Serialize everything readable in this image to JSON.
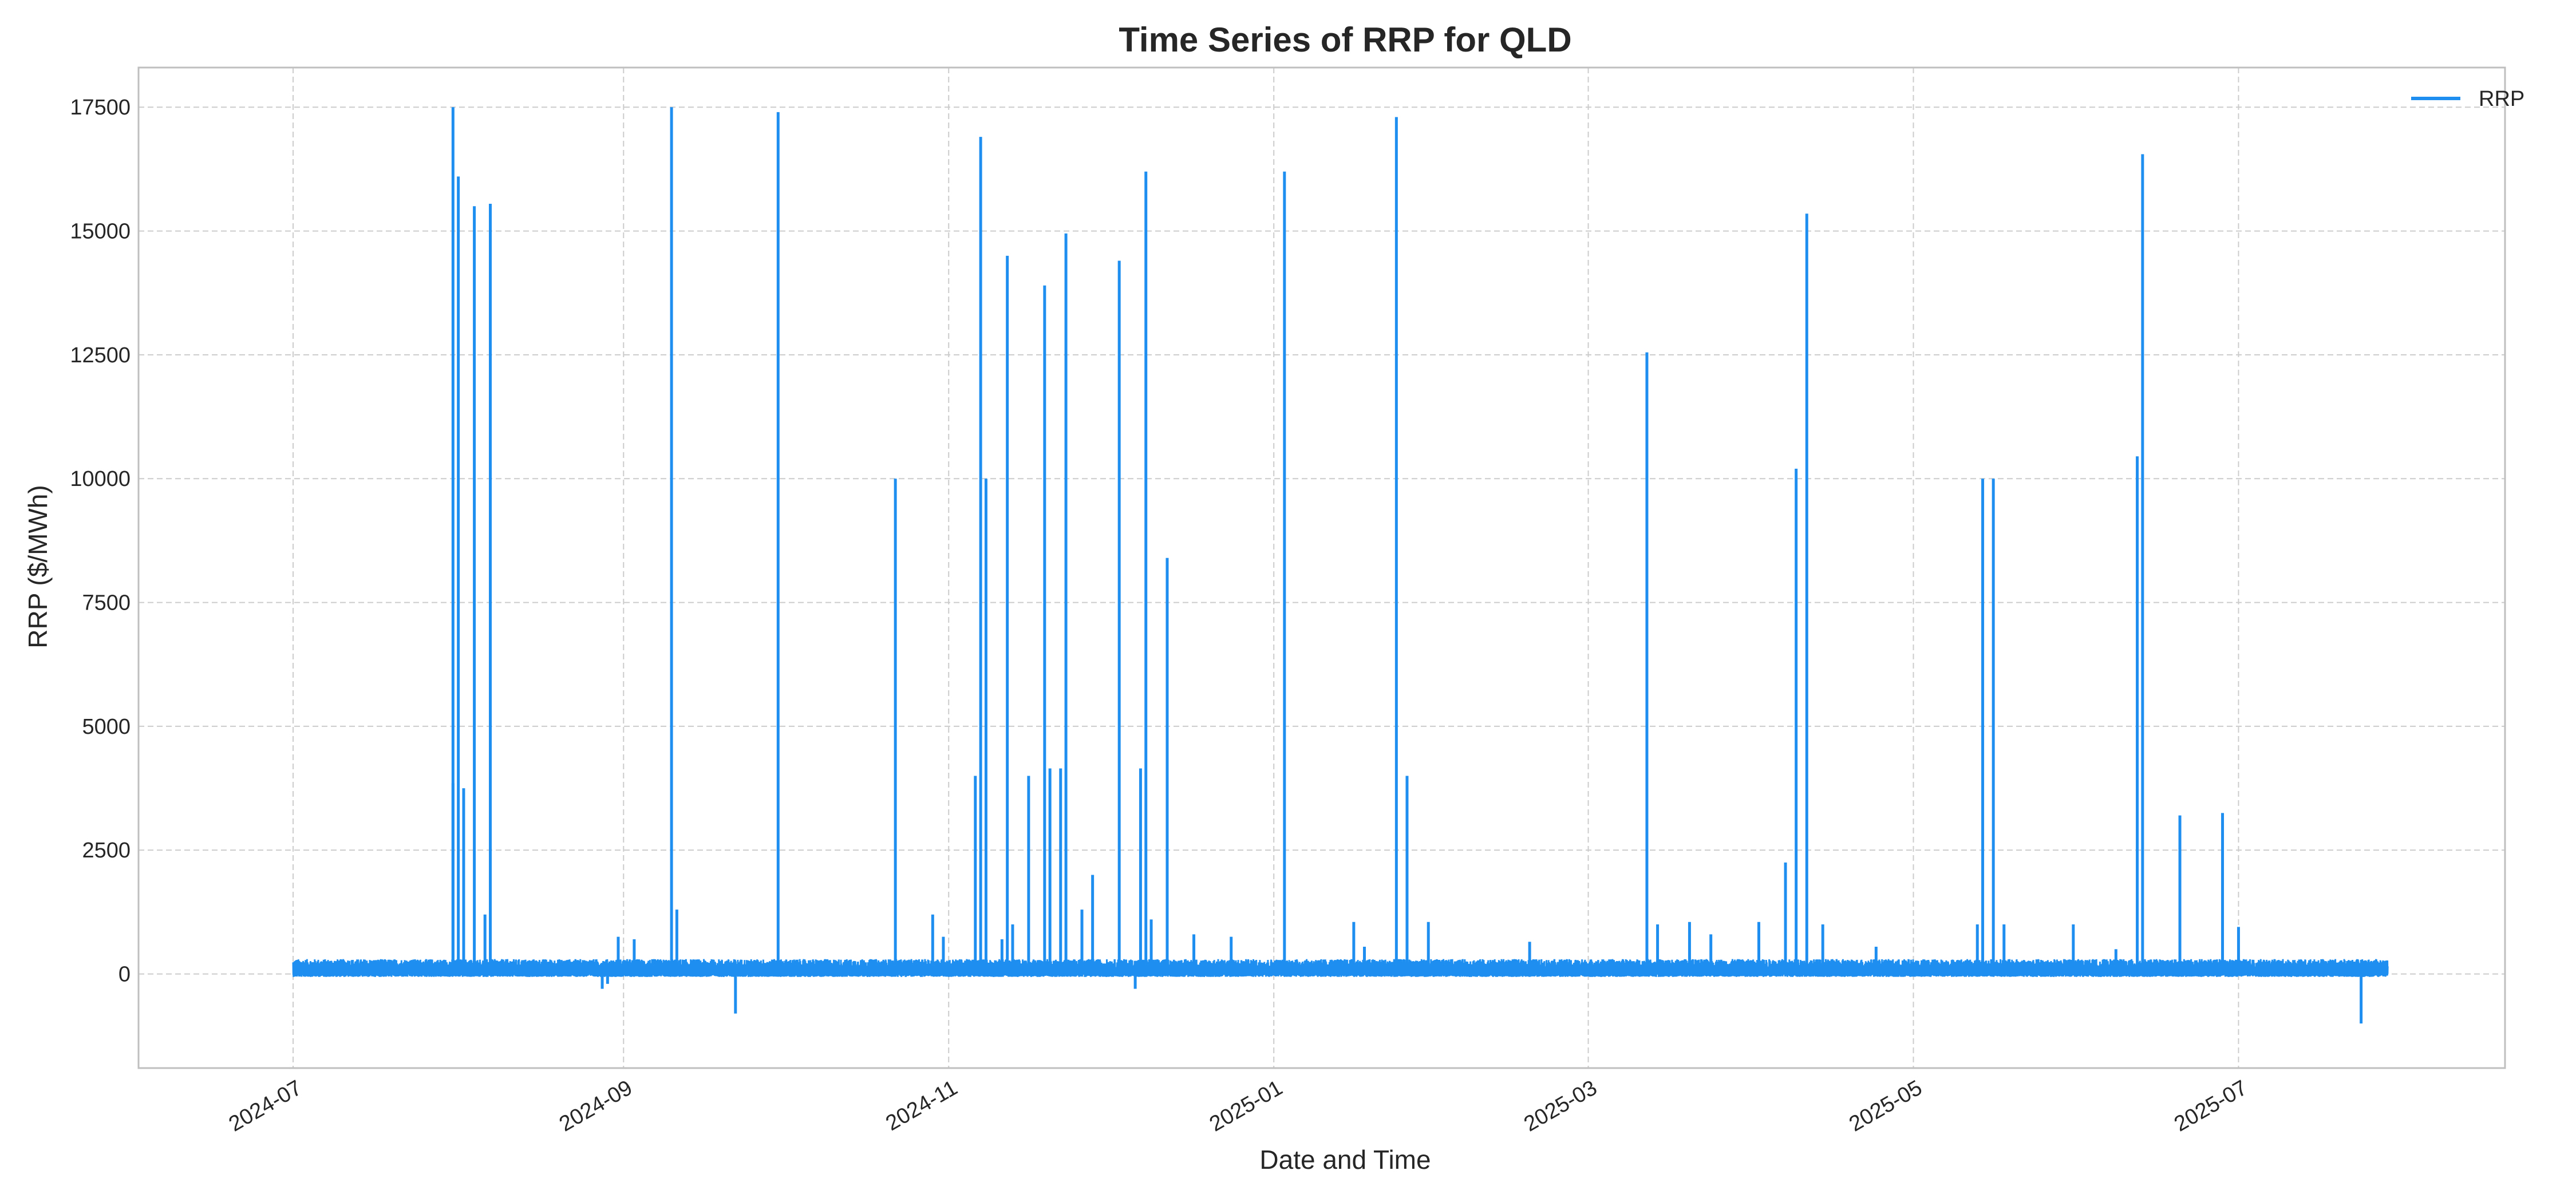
{
  "chart_data": {
    "type": "line",
    "title": "Time Series of RRP for QLD",
    "xlabel": "Date and Time",
    "ylabel": "RRP ($/MWh)",
    "x_axis_type": "date",
    "xlim": [
      "2024-06-02",
      "2025-08-20"
    ],
    "ylim": [
      -1900,
      18300
    ],
    "x_ticks": [
      "2024-07",
      "2024-09",
      "2024-11",
      "2025-01",
      "2025-03",
      "2025-05",
      "2025-07"
    ],
    "x_tick_dates": [
      "2024-07-01",
      "2024-09-01",
      "2024-11-01",
      "2025-01-01",
      "2025-03-01",
      "2025-05-01",
      "2025-07-01"
    ],
    "y_ticks": [
      0,
      2500,
      5000,
      7500,
      10000,
      12500,
      15000,
      17500
    ],
    "grid": true,
    "legend": {
      "position": "top-right",
      "entries": [
        "RRP"
      ]
    },
    "baseline": {
      "start": "2024-07-01",
      "end": "2025-07-29",
      "low": -60,
      "high": 300
    },
    "series": [
      {
        "name": "RRP",
        "color": "#1e8ff0",
        "points": [
          [
            "2024-07-31",
            3850
          ],
          [
            "2024-07-31",
            17500
          ],
          [
            "2024-08-01",
            16100
          ],
          [
            "2024-08-02",
            3750
          ],
          [
            "2024-08-04",
            15500
          ],
          [
            "2024-08-06",
            1200
          ],
          [
            "2024-08-07",
            15550
          ],
          [
            "2024-08-28",
            -300
          ],
          [
            "2024-08-29",
            -200
          ],
          [
            "2024-08-31",
            750
          ],
          [
            "2024-09-03",
            700
          ],
          [
            "2024-09-10",
            17500
          ],
          [
            "2024-09-11",
            1300
          ],
          [
            "2024-09-22",
            -800
          ],
          [
            "2024-09-30",
            17400
          ],
          [
            "2024-10-22",
            10000
          ],
          [
            "2024-10-29",
            1200
          ],
          [
            "2024-10-31",
            750
          ],
          [
            "2024-11-06",
            4000
          ],
          [
            "2024-11-07",
            16900
          ],
          [
            "2024-11-08",
            10000
          ],
          [
            "2024-11-11",
            700
          ],
          [
            "2024-11-12",
            14500
          ],
          [
            "2024-11-13",
            1000
          ],
          [
            "2024-11-16",
            4000
          ],
          [
            "2024-11-19",
            13900
          ],
          [
            "2024-11-20",
            4150
          ],
          [
            "2024-11-22",
            4150
          ],
          [
            "2024-11-23",
            14950
          ],
          [
            "2024-11-26",
            1300
          ],
          [
            "2024-11-28",
            2000
          ],
          [
            "2024-12-03",
            14400
          ],
          [
            "2024-12-06",
            -300
          ],
          [
            "2024-12-07",
            4150
          ],
          [
            "2024-12-08",
            16200
          ],
          [
            "2024-12-09",
            1100
          ],
          [
            "2024-12-12",
            8400
          ],
          [
            "2024-12-17",
            800
          ],
          [
            "2024-12-24",
            750
          ],
          [
            "2025-01-03",
            16200
          ],
          [
            "2025-01-16",
            1050
          ],
          [
            "2025-01-18",
            550
          ],
          [
            "2025-01-24",
            17300
          ],
          [
            "2025-01-26",
            4000
          ],
          [
            "2025-01-30",
            1050
          ],
          [
            "2025-02-18",
            650
          ],
          [
            "2025-03-12",
            12550
          ],
          [
            "2025-03-14",
            1000
          ],
          [
            "2025-03-20",
            1050
          ],
          [
            "2025-03-24",
            800
          ],
          [
            "2025-04-02",
            1050
          ],
          [
            "2025-04-07",
            2250
          ],
          [
            "2025-04-09",
            10200
          ],
          [
            "2025-04-11",
            15350
          ],
          [
            "2025-04-14",
            1000
          ],
          [
            "2025-04-24",
            550
          ],
          [
            "2025-05-13",
            1000
          ],
          [
            "2025-05-14",
            10000
          ],
          [
            "2025-05-16",
            10000
          ],
          [
            "2025-05-18",
            1000
          ],
          [
            "2025-05-31",
            1000
          ],
          [
            "2025-06-08",
            500
          ],
          [
            "2025-06-12",
            10450
          ],
          [
            "2025-06-13",
            16550
          ],
          [
            "2025-06-20",
            3200
          ],
          [
            "2025-06-28",
            3250
          ],
          [
            "2025-07-01",
            950
          ],
          [
            "2025-07-24",
            -1000
          ]
        ]
      }
    ]
  }
}
